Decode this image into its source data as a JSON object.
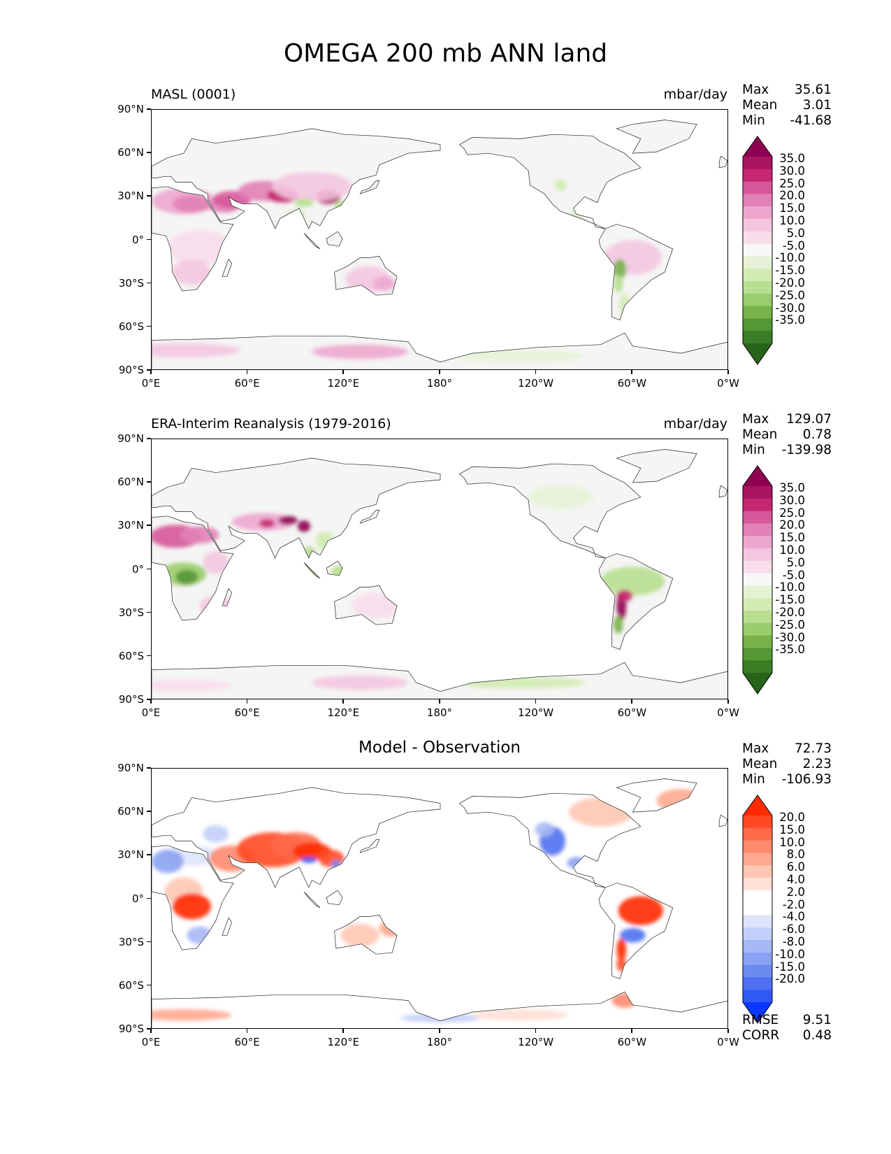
{
  "figure": {
    "title": "OMEGA 200 mb ANN land"
  },
  "axes": {
    "lat_labels": [
      "90°N",
      "60°N",
      "30°N",
      "0°",
      "30°S",
      "60°S",
      "90°S"
    ],
    "lon_labels": [
      "0°E",
      "60°E",
      "120°E",
      "180°",
      "120°W",
      "60°W",
      "0°W"
    ]
  },
  "panels": [
    {
      "id": "model",
      "title_left": "MASL (0001)",
      "title_right": "mbar/day",
      "stats": {
        "max_label": "Max",
        "max": "35.61",
        "mean_label": "Mean",
        "mean": "3.01",
        "min_label": "Min",
        "min": "-41.68"
      },
      "colorbar": {
        "labels": [
          "35.0",
          "30.0",
          "25.0",
          "20.0",
          "15.0",
          "10.0",
          "5.0",
          "-5.0",
          "-10.0",
          "-15.0",
          "-20.0",
          "-25.0",
          "-30.0",
          "-35.0"
        ],
        "colors": [
          "#8e0152",
          "#a8145f",
          "#c5286f",
          "#d6589a",
          "#e281b6",
          "#eda7cf",
          "#f4c6e0",
          "#f8ddeb",
          "#f7f7f7",
          "#e6f2d5",
          "#d2ebb3",
          "#b8df90",
          "#9acd6b",
          "#78b24a",
          "#559635",
          "#3b7d25",
          "#276419"
        ]
      }
    },
    {
      "id": "obs",
      "title_left": "ERA-Interim Reanalysis (1979-2016)",
      "title_right": "mbar/day",
      "stats": {
        "max_label": "Max",
        "max": "129.07",
        "mean_label": "Mean",
        "mean": "0.78",
        "min_label": "Min",
        "min": "-139.98"
      },
      "colorbar": {
        "labels": [
          "35.0",
          "30.0",
          "25.0",
          "20.0",
          "15.0",
          "10.0",
          "5.0",
          "-5.0",
          "-10.0",
          "-15.0",
          "-20.0",
          "-25.0",
          "-30.0",
          "-35.0"
        ],
        "colors": [
          "#8e0152",
          "#a8145f",
          "#c5286f",
          "#d6589a",
          "#e281b6",
          "#eda7cf",
          "#f4c6e0",
          "#f8ddeb",
          "#f7f7f7",
          "#e6f2d5",
          "#d2ebb3",
          "#b8df90",
          "#9acd6b",
          "#78b24a",
          "#559635",
          "#3b7d25",
          "#276419"
        ]
      }
    },
    {
      "id": "diff",
      "title_center": "Model - Observation",
      "stats": {
        "max_label": "Max",
        "max": "72.73",
        "mean_label": "Mean",
        "mean": "2.23",
        "min_label": "Min",
        "min": "-106.93"
      },
      "colorbar": {
        "labels": [
          "20.0",
          "15.0",
          "10.0",
          "8.0",
          "6.0",
          "4.0",
          "2.0",
          "-2.0",
          "-4.0",
          "-6.0",
          "-8.0",
          "-10.0",
          "-15.0",
          "-20.0"
        ],
        "colors": [
          "#ff2a00",
          "#ff4a24",
          "#ff6a4a",
          "#ff8a6e",
          "#ffa890",
          "#ffc6b3",
          "#ffe0d6",
          "#ffffff",
          "#ffffff",
          "#dde4fb",
          "#c2cff8",
          "#a6b8f5",
          "#8aa2f2",
          "#6d8af0",
          "#4f70f0",
          "#3058f5",
          "#0a37ff"
        ]
      },
      "rmse_label": "RMSE",
      "rmse": "9.51",
      "corr_label": "CORR",
      "corr": "0.48"
    }
  ]
}
